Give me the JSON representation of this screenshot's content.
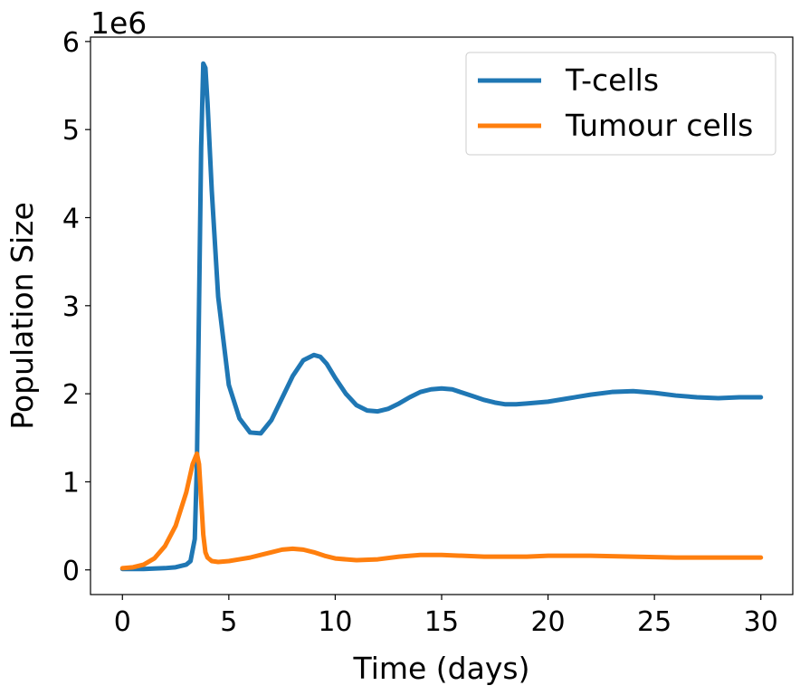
{
  "chart_data": {
    "type": "line",
    "xlabel": "Time (days)",
    "ylabel": "Population Size",
    "y_offset_label": "1e6",
    "xlim": [
      -1.5,
      31.5
    ],
    "ylim": [
      -0.28,
      6.05
    ],
    "x_ticks": [
      0,
      5,
      10,
      15,
      20,
      25,
      30
    ],
    "x_tick_labels": [
      "0",
      "5",
      "10",
      "15",
      "20",
      "25",
      "30"
    ],
    "y_ticks": [
      0,
      1,
      2,
      3,
      4,
      5,
      6
    ],
    "y_tick_labels": [
      "0",
      "1",
      "2",
      "3",
      "4",
      "5",
      "6"
    ],
    "y_scale_note": "values in units of 1e6",
    "grid": false,
    "legend_position": "top-right",
    "series": [
      {
        "name": "T-cells",
        "color": "#1f77b4",
        "x": [
          0,
          1,
          2,
          2.5,
          3,
          3.2,
          3.4,
          3.5,
          3.6,
          3.7,
          3.8,
          3.9,
          4.0,
          4.2,
          4.5,
          5.0,
          5.5,
          6.0,
          6.5,
          7.0,
          7.5,
          8.0,
          8.5,
          9.0,
          9.3,
          9.6,
          10.0,
          10.5,
          11.0,
          11.5,
          12.0,
          12.5,
          13.0,
          13.5,
          14.0,
          14.5,
          15.0,
          15.5,
          16.0,
          16.5,
          17.0,
          17.5,
          18.0,
          18.5,
          19.0,
          20.0,
          21.0,
          22.0,
          23.0,
          24.0,
          25.0,
          26.0,
          27.0,
          28.0,
          29.0,
          30.0
        ],
        "y": [
          0.01,
          0.01,
          0.02,
          0.03,
          0.06,
          0.1,
          0.35,
          1.2,
          3.0,
          4.8,
          5.75,
          5.7,
          5.3,
          4.3,
          3.1,
          2.1,
          1.72,
          1.56,
          1.55,
          1.7,
          1.95,
          2.2,
          2.38,
          2.44,
          2.42,
          2.34,
          2.18,
          2.0,
          1.87,
          1.81,
          1.8,
          1.83,
          1.89,
          1.96,
          2.02,
          2.05,
          2.06,
          2.05,
          2.01,
          1.97,
          1.93,
          1.9,
          1.88,
          1.88,
          1.89,
          1.91,
          1.95,
          1.99,
          2.02,
          2.03,
          2.01,
          1.98,
          1.96,
          1.95,
          1.96,
          1.96
        ]
      },
      {
        "name": "Tumour cells",
        "color": "#ff7f0e",
        "x": [
          0,
          0.5,
          1.0,
          1.5,
          2.0,
          2.5,
          3.0,
          3.3,
          3.5,
          3.6,
          3.7,
          3.8,
          3.9,
          4.0,
          4.2,
          4.5,
          5.0,
          5.5,
          6.0,
          6.5,
          7.0,
          7.5,
          8.0,
          8.5,
          9.0,
          9.5,
          10.0,
          11.0,
          12.0,
          13.0,
          14.0,
          15.0,
          16.0,
          17.0,
          18.0,
          19.0,
          20.0,
          22.0,
          24.0,
          26.0,
          28.0,
          30.0
        ],
        "y": [
          0.02,
          0.03,
          0.06,
          0.13,
          0.27,
          0.5,
          0.88,
          1.2,
          1.32,
          1.2,
          0.8,
          0.4,
          0.2,
          0.14,
          0.1,
          0.09,
          0.1,
          0.12,
          0.14,
          0.17,
          0.2,
          0.23,
          0.24,
          0.23,
          0.2,
          0.16,
          0.13,
          0.11,
          0.12,
          0.15,
          0.17,
          0.17,
          0.16,
          0.15,
          0.15,
          0.15,
          0.16,
          0.16,
          0.15,
          0.14,
          0.14,
          0.14
        ]
      }
    ]
  }
}
